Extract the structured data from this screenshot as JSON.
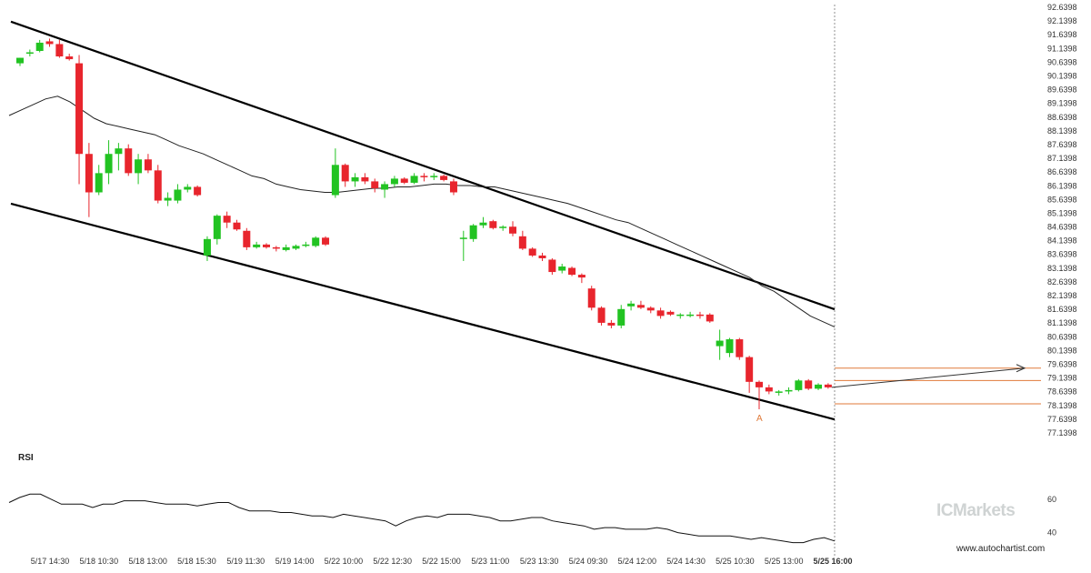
{
  "branding": {
    "logo_text": "ICMarkets",
    "website": "www.autochartist.com"
  },
  "colors": {
    "bull": "#22c322",
    "bear": "#e8252d",
    "channel": "#000000",
    "ma": "#222222",
    "forecast": "#e07a3a"
  },
  "chart_data": {
    "type": "candlestick",
    "y_ticks": [
      "92.6398",
      "92.1398",
      "91.6398",
      "91.1398",
      "90.6398",
      "90.1398",
      "89.6398",
      "89.1398",
      "88.6398",
      "88.1398",
      "87.6398",
      "87.1398",
      "86.6398",
      "86.1398",
      "85.6398",
      "85.1398",
      "84.6398",
      "84.1398",
      "83.6398",
      "83.1398",
      "82.6398",
      "82.1398",
      "81.6398",
      "81.1398",
      "80.6398",
      "80.1398",
      "79.6398",
      "79.1398",
      "78.6398",
      "78.1398",
      "77.6398",
      "77.1398"
    ],
    "y_range": [
      77.1398,
      92.6398
    ],
    "x_ticks": [
      "5/17 14:30",
      "5/18 10:30",
      "5/18 13:00",
      "5/18 15:30",
      "5/19 11:30",
      "5/19 14:00",
      "5/22 10:00",
      "5/22 12:30",
      "5/22 15:00",
      "5/23 11:00",
      "5/23 13:30",
      "5/24 09:30",
      "5/24 12:00",
      "5/24 14:30",
      "5/25 10:30",
      "5/25 13:00",
      "5/25 16:00"
    ],
    "candles": [
      {
        "o": 90.6,
        "h": 90.8,
        "l": 90.5,
        "c": 90.8
      },
      {
        "o": 90.95,
        "h": 91.1,
        "l": 90.85,
        "c": 91.0
      },
      {
        "o": 91.05,
        "h": 91.45,
        "l": 91.0,
        "c": 91.35
      },
      {
        "o": 91.4,
        "h": 91.5,
        "l": 91.2,
        "c": 91.3
      },
      {
        "o": 91.3,
        "h": 91.45,
        "l": 90.8,
        "c": 90.85
      },
      {
        "o": 90.85,
        "h": 90.95,
        "l": 90.7,
        "c": 90.75
      },
      {
        "o": 90.6,
        "h": 90.9,
        "l": 86.2,
        "c": 87.3
      },
      {
        "o": 87.3,
        "h": 87.7,
        "l": 85.0,
        "c": 85.9
      },
      {
        "o": 85.9,
        "h": 86.9,
        "l": 85.8,
        "c": 86.6
      },
      {
        "o": 86.6,
        "h": 87.8,
        "l": 86.2,
        "c": 87.3
      },
      {
        "o": 87.3,
        "h": 87.7,
        "l": 86.7,
        "c": 87.5
      },
      {
        "o": 87.5,
        "h": 87.65,
        "l": 86.5,
        "c": 86.6
      },
      {
        "o": 86.6,
        "h": 87.3,
        "l": 86.2,
        "c": 87.1
      },
      {
        "o": 87.1,
        "h": 87.3,
        "l": 86.6,
        "c": 86.7
      },
      {
        "o": 86.7,
        "h": 86.9,
        "l": 85.5,
        "c": 85.6
      },
      {
        "o": 85.6,
        "h": 85.9,
        "l": 85.4,
        "c": 85.7
      },
      {
        "o": 85.6,
        "h": 86.2,
        "l": 85.5,
        "c": 86.0
      },
      {
        "o": 86.0,
        "h": 86.2,
        "l": 85.9,
        "c": 86.1
      },
      {
        "o": 86.1,
        "h": 86.15,
        "l": 85.75,
        "c": 85.8
      },
      {
        "o": 83.6,
        "h": 84.3,
        "l": 83.4,
        "c": 84.2
      },
      {
        "o": 84.2,
        "h": 85.1,
        "l": 84.0,
        "c": 85.05
      },
      {
        "o": 85.05,
        "h": 85.2,
        "l": 84.6,
        "c": 84.8
      },
      {
        "o": 84.8,
        "h": 84.9,
        "l": 84.5,
        "c": 84.55
      },
      {
        "o": 84.5,
        "h": 84.6,
        "l": 83.8,
        "c": 83.9
      },
      {
        "o": 83.9,
        "h": 84.1,
        "l": 83.85,
        "c": 84.0
      },
      {
        "o": 84.0,
        "h": 84.05,
        "l": 83.85,
        "c": 83.9
      },
      {
        "o": 83.9,
        "h": 83.95,
        "l": 83.75,
        "c": 83.85
      },
      {
        "o": 83.8,
        "h": 84.0,
        "l": 83.75,
        "c": 83.9
      },
      {
        "o": 83.85,
        "h": 84.0,
        "l": 83.8,
        "c": 83.95
      },
      {
        "o": 83.95,
        "h": 84.1,
        "l": 83.9,
        "c": 84.0
      },
      {
        "o": 83.95,
        "h": 84.3,
        "l": 83.9,
        "c": 84.25
      },
      {
        "o": 84.25,
        "h": 84.3,
        "l": 83.95,
        "c": 84.0
      },
      {
        "o": 85.8,
        "h": 87.5,
        "l": 85.7,
        "c": 86.9
      },
      {
        "o": 86.9,
        "h": 86.95,
        "l": 86.1,
        "c": 86.3
      },
      {
        "o": 86.3,
        "h": 86.6,
        "l": 86.1,
        "c": 86.45
      },
      {
        "o": 86.45,
        "h": 86.6,
        "l": 86.2,
        "c": 86.3
      },
      {
        "o": 86.3,
        "h": 86.4,
        "l": 85.9,
        "c": 86.05
      },
      {
        "o": 86.0,
        "h": 86.3,
        "l": 85.7,
        "c": 86.2
      },
      {
        "o": 86.2,
        "h": 86.5,
        "l": 86.1,
        "c": 86.4
      },
      {
        "o": 86.4,
        "h": 86.45,
        "l": 86.2,
        "c": 86.25
      },
      {
        "o": 86.25,
        "h": 86.6,
        "l": 86.2,
        "c": 86.5
      },
      {
        "o": 86.5,
        "h": 86.6,
        "l": 86.3,
        "c": 86.45
      },
      {
        "o": 86.45,
        "h": 86.6,
        "l": 86.35,
        "c": 86.5
      },
      {
        "o": 86.5,
        "h": 86.55,
        "l": 86.3,
        "c": 86.35
      },
      {
        "o": 86.3,
        "h": 86.4,
        "l": 85.8,
        "c": 85.9
      },
      {
        "o": 84.2,
        "h": 84.5,
        "l": 83.4,
        "c": 84.25
      },
      {
        "o": 84.2,
        "h": 84.75,
        "l": 84.1,
        "c": 84.7
      },
      {
        "o": 84.7,
        "h": 85.0,
        "l": 84.6,
        "c": 84.8
      },
      {
        "o": 84.85,
        "h": 84.9,
        "l": 84.55,
        "c": 84.6
      },
      {
        "o": 84.6,
        "h": 84.7,
        "l": 84.5,
        "c": 84.65
      },
      {
        "o": 84.65,
        "h": 84.85,
        "l": 84.3,
        "c": 84.4
      },
      {
        "o": 84.3,
        "h": 84.5,
        "l": 83.8,
        "c": 83.85
      },
      {
        "o": 83.85,
        "h": 83.9,
        "l": 83.55,
        "c": 83.6
      },
      {
        "o": 83.6,
        "h": 83.7,
        "l": 83.4,
        "c": 83.5
      },
      {
        "o": 83.45,
        "h": 83.5,
        "l": 82.9,
        "c": 83.0
      },
      {
        "o": 83.05,
        "h": 83.3,
        "l": 82.95,
        "c": 83.2
      },
      {
        "o": 83.15,
        "h": 83.2,
        "l": 82.85,
        "c": 82.9
      },
      {
        "o": 82.9,
        "h": 82.95,
        "l": 82.6,
        "c": 82.8
      },
      {
        "o": 82.4,
        "h": 82.5,
        "l": 81.6,
        "c": 81.7
      },
      {
        "o": 81.7,
        "h": 81.75,
        "l": 81.05,
        "c": 81.15
      },
      {
        "o": 81.15,
        "h": 81.25,
        "l": 80.95,
        "c": 81.05
      },
      {
        "o": 81.05,
        "h": 81.8,
        "l": 80.95,
        "c": 81.65
      },
      {
        "o": 81.75,
        "h": 81.95,
        "l": 81.6,
        "c": 81.85
      },
      {
        "o": 81.8,
        "h": 81.95,
        "l": 81.65,
        "c": 81.7
      },
      {
        "o": 81.7,
        "h": 81.75,
        "l": 81.5,
        "c": 81.6
      },
      {
        "o": 81.6,
        "h": 81.7,
        "l": 81.3,
        "c": 81.4
      },
      {
        "o": 81.55,
        "h": 81.6,
        "l": 81.4,
        "c": 81.45
      },
      {
        "o": 81.45,
        "h": 81.5,
        "l": 81.3,
        "c": 81.45
      },
      {
        "o": 81.45,
        "h": 81.55,
        "l": 81.35,
        "c": 81.45
      },
      {
        "o": 81.45,
        "h": 81.55,
        "l": 81.3,
        "c": 81.4
      },
      {
        "o": 81.45,
        "h": 81.5,
        "l": 81.15,
        "c": 81.2
      },
      {
        "o": 80.3,
        "h": 80.9,
        "l": 79.8,
        "c": 80.5
      },
      {
        "o": 80.05,
        "h": 80.6,
        "l": 79.9,
        "c": 80.55
      },
      {
        "o": 80.55,
        "h": 80.6,
        "l": 79.8,
        "c": 79.9
      },
      {
        "o": 79.9,
        "h": 79.95,
        "l": 78.6,
        "c": 79.0
      },
      {
        "o": 79.0,
        "h": 79.05,
        "l": 78.0,
        "c": 78.8
      },
      {
        "o": 78.8,
        "h": 78.9,
        "l": 78.55,
        "c": 78.65
      },
      {
        "o": 78.6,
        "h": 78.7,
        "l": 78.5,
        "c": 78.65
      },
      {
        "o": 78.65,
        "h": 78.8,
        "l": 78.55,
        "c": 78.7
      },
      {
        "o": 78.7,
        "h": 79.1,
        "l": 78.65,
        "c": 79.05
      },
      {
        "o": 79.05,
        "h": 79.1,
        "l": 78.7,
        "c": 78.75
      },
      {
        "o": 78.75,
        "h": 78.95,
        "l": 78.7,
        "c": 78.9
      },
      {
        "o": 78.9,
        "h": 78.95,
        "l": 78.75,
        "c": 78.8
      }
    ],
    "moving_average": [
      88.7,
      88.9,
      89.1,
      89.3,
      89.4,
      89.2,
      88.9,
      88.6,
      88.4,
      88.3,
      88.2,
      88.1,
      88.0,
      87.8,
      87.6,
      87.45,
      87.3,
      87.1,
      86.9,
      86.7,
      86.5,
      86.4,
      86.2,
      86.1,
      86.0,
      85.95,
      85.9,
      85.9,
      85.95,
      86.0,
      86.05,
      86.05,
      86.1,
      86.1,
      86.15,
      86.2,
      86.2,
      86.15,
      86.15,
      86.1,
      86.1,
      86.0,
      85.9,
      85.8,
      85.7,
      85.6,
      85.5,
      85.35,
      85.2,
      85.05,
      84.9,
      84.8,
      84.6,
      84.4,
      84.2,
      84.0,
      83.8,
      83.6,
      83.4,
      83.2,
      83.0,
      82.8,
      82.5,
      82.3,
      82.0,
      81.7,
      81.4,
      81.2,
      81.0
    ],
    "channel": {
      "upper": [
        [
          0,
          92.0
        ],
        [
          83,
          81.6
        ]
      ],
      "lower": [
        [
          0,
          85.4
        ],
        [
          83,
          77.6
        ]
      ]
    },
    "forecast": {
      "levels": [
        79.5,
        79.05,
        78.2
      ],
      "arrow_end": 79.5,
      "pattern_label": "A",
      "pattern_label_index": 75
    },
    "rsi": {
      "title": "RSI",
      "ticks": [
        "60",
        "40"
      ],
      "y_range": [
        30,
        80
      ],
      "values": [
        58,
        61,
        63,
        63,
        60,
        57,
        57,
        57,
        55,
        57,
        57,
        59,
        59,
        59,
        58,
        57,
        57,
        57,
        56,
        57,
        58,
        58,
        55,
        53,
        53,
        53,
        52,
        52,
        51,
        50,
        50,
        49,
        51,
        50,
        49,
        48,
        47,
        44,
        47,
        49,
        50,
        49,
        51,
        51,
        51,
        50,
        49,
        47,
        47,
        48,
        49,
        49,
        47,
        46,
        45,
        44,
        42,
        43,
        43,
        42,
        42,
        42,
        43,
        42,
        40,
        39,
        38,
        38,
        38,
        38,
        37,
        36,
        37,
        36,
        35,
        34,
        34,
        36,
        37,
        35
      ]
    }
  }
}
